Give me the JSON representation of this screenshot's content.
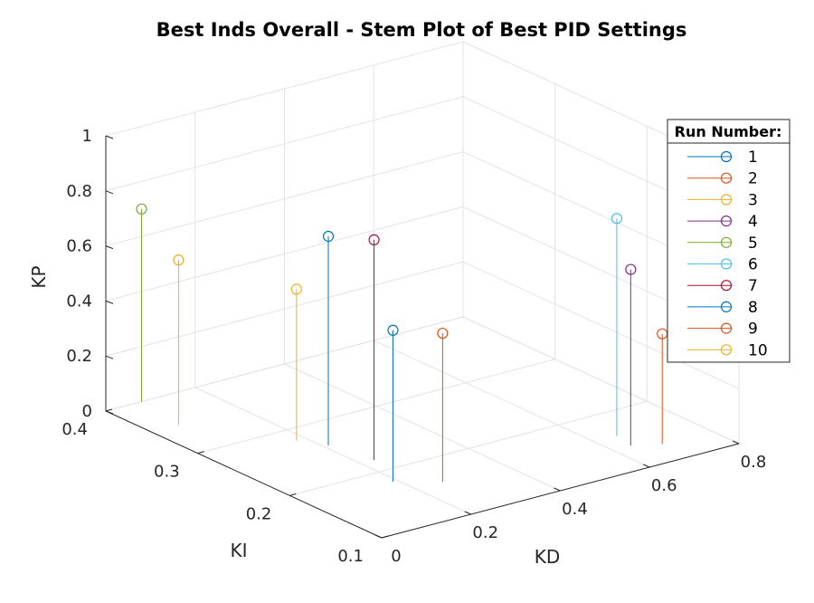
{
  "chart_data": {
    "type": "scatter",
    "subtype": "stem3",
    "title": "Best Inds Overall - Stem Plot of Best PID Settings",
    "xlabel": "KD",
    "ylabel": "KI",
    "zlabel": "KP",
    "xlim": [
      0,
      0.8
    ],
    "ylim": [
      0.1,
      0.4
    ],
    "zlim": [
      0,
      1
    ],
    "x_ticks": [
      "0",
      "0.2",
      "0.4",
      "0.6",
      "0.8"
    ],
    "y_ticks": [
      "0.1",
      "0.2",
      "0.3",
      "0.4"
    ],
    "z_ticks": [
      "0",
      "0.2",
      "0.4",
      "0.6",
      "0.8",
      "1"
    ],
    "grid": true,
    "legend": {
      "title": "Run Number:",
      "placement": "right"
    },
    "series": [
      {
        "name": "1",
        "color": "#0072BD",
        "points": [
          {
            "x": 0.19,
            "y": 0.18,
            "z": 0.55
          }
        ]
      },
      {
        "name": "2",
        "color": "#D95319",
        "points": [
          {
            "x": 0.26,
            "y": 0.16,
            "z": 0.54
          }
        ]
      },
      {
        "name": "3",
        "color": "#EDB120",
        "points": [
          {
            "x": 0.06,
            "y": 0.35,
            "z": 0.6
          }
        ]
      },
      {
        "name": "4",
        "color": "#7E2F8E",
        "points": [
          {
            "x": 0.64,
            "y": 0.14,
            "z": 0.64
          }
        ]
      },
      {
        "name": "5",
        "color": "#77AC30",
        "points": [
          {
            "x": 0.08,
            "y": 0.4,
            "z": 0.7
          }
        ]
      },
      {
        "name": "6",
        "color": "#4DBEEE",
        "points": [
          {
            "x": 0.65,
            "y": 0.16,
            "z": 0.79
          }
        ]
      },
      {
        "name": "7",
        "color": "#A2142F",
        "points": [
          {
            "x": 0.23,
            "y": 0.22,
            "z": 0.8
          }
        ]
      },
      {
        "name": "8",
        "color": "#0072BD",
        "points": [
          {
            "x": 0.21,
            "y": 0.26,
            "z": 0.76
          }
        ]
      },
      {
        "name": "9",
        "color": "#D95319",
        "points": [
          {
            "x": 0.69,
            "y": 0.13,
            "z": 0.4
          }
        ]
      },
      {
        "name": "10",
        "color": "#EDB120",
        "points": [
          {
            "x": 0.18,
            "y": 0.28,
            "z": 0.55
          }
        ]
      }
    ]
  }
}
